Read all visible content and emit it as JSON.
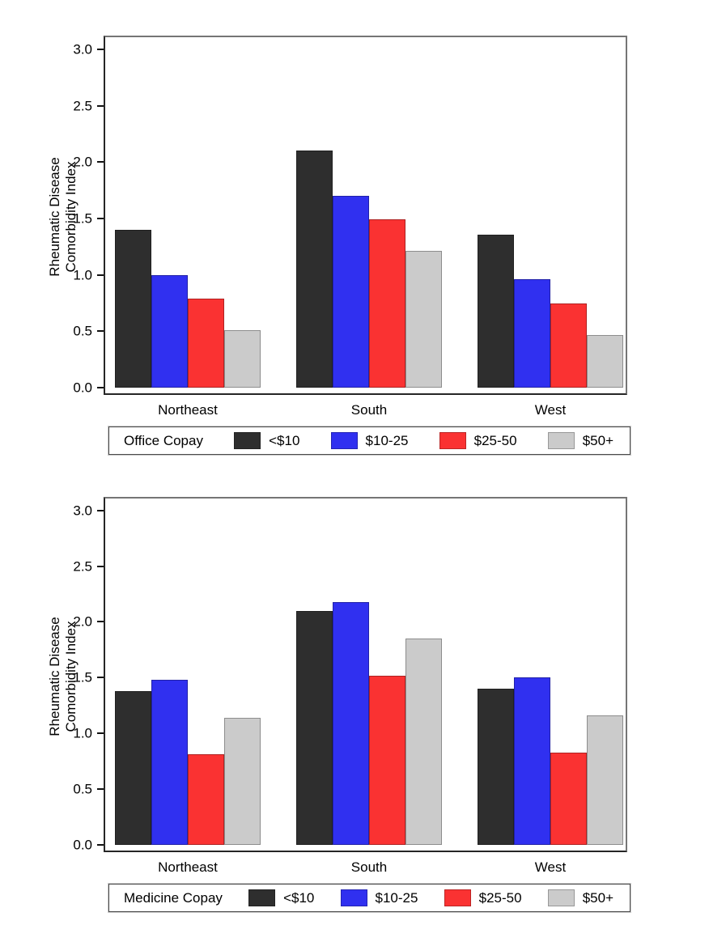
{
  "figure": {
    "background_color": "#ffffff",
    "text_color": "#000000"
  },
  "chart_data": [
    {
      "type": "bar",
      "legend_title": "Office Copay",
      "ylabel_line1": "Rheumatic Disease",
      "ylabel_line2": "Comorbidity Index",
      "categories": [
        "Northeast",
        "South",
        "West"
      ],
      "yticks": [
        "0.0",
        "0.5",
        "1.0",
        "1.5",
        "2.0",
        "2.5",
        "3.0"
      ],
      "ylim": [
        0,
        3
      ],
      "grid": false,
      "legend_position": "bottom",
      "series": [
        {
          "name": "<$10",
          "color": "#2e2e2e",
          "values": [
            1.4,
            2.1,
            1.36
          ]
        },
        {
          "name": "$10-25",
          "color": "#3030f0",
          "values": [
            1.0,
            1.7,
            0.96
          ]
        },
        {
          "name": "$25-50",
          "color": "#fa3232",
          "values": [
            0.79,
            1.49,
            0.75
          ]
        },
        {
          "name": "$50+",
          "color": "#cbcbcb",
          "values": [
            0.51,
            1.21,
            0.47
          ]
        }
      ]
    },
    {
      "type": "bar",
      "legend_title": "Medicine Copay",
      "ylabel_line1": "Rheumatic Disease",
      "ylabel_line2": "Comorbidity Index",
      "categories": [
        "Northeast",
        "South",
        "West"
      ],
      "yticks": [
        "0.0",
        "0.5",
        "1.0",
        "1.5",
        "2.0",
        "2.5",
        "3.0"
      ],
      "ylim": [
        0,
        3
      ],
      "grid": false,
      "legend_position": "bottom",
      "series": [
        {
          "name": "<$10",
          "color": "#2e2e2e",
          "values": [
            1.38,
            2.1,
            1.4
          ]
        },
        {
          "name": "$10-25",
          "color": "#3030f0",
          "values": [
            1.48,
            2.18,
            1.5
          ]
        },
        {
          "name": "$25-50",
          "color": "#fa3232",
          "values": [
            0.81,
            1.52,
            0.83
          ]
        },
        {
          "name": "$50+",
          "color": "#cbcbcb",
          "values": [
            1.14,
            1.85,
            1.16
          ]
        }
      ]
    }
  ]
}
